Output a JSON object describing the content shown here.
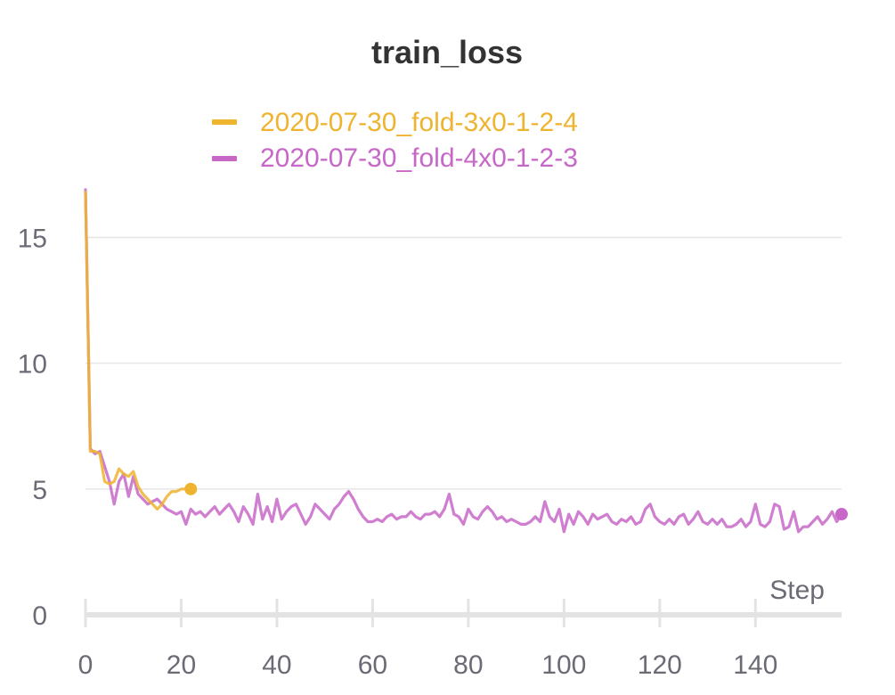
{
  "chart_data": {
    "type": "line",
    "title": "train_loss",
    "xlabel": "Step",
    "ylabel": "",
    "xlim": [
      0,
      158
    ],
    "ylim": [
      0,
      17
    ],
    "xticks": [
      0,
      20,
      40,
      60,
      80,
      100,
      120,
      140
    ],
    "yticks": [
      0,
      5,
      10,
      15
    ],
    "grid": true,
    "legend_position": "top-center",
    "series": [
      {
        "name": "2020-07-30_fold-3x0-1-2-4",
        "color": "#efb42f",
        "x": [
          0,
          1,
          2,
          3,
          4,
          5,
          6,
          7,
          8,
          9,
          10,
          11,
          12,
          13,
          14,
          15,
          16,
          17,
          18,
          19,
          20,
          21,
          22
        ],
        "y": [
          16.8,
          6.5,
          6.5,
          6.4,
          5.3,
          5.2,
          5.3,
          5.8,
          5.6,
          5.5,
          5.7,
          5.1,
          4.8,
          4.6,
          4.4,
          4.2,
          4.4,
          4.7,
          4.9,
          4.9,
          5.0,
          5.0,
          5.0
        ]
      },
      {
        "name": "2020-07-30_fold-4x0-1-2-3",
        "color": "#c767c8",
        "x": [
          0,
          1,
          2,
          3,
          4,
          5,
          6,
          7,
          8,
          9,
          10,
          11,
          12,
          13,
          14,
          15,
          16,
          17,
          18,
          19,
          20,
          21,
          22,
          23,
          24,
          25,
          26,
          27,
          28,
          29,
          30,
          31,
          32,
          33,
          34,
          35,
          36,
          37,
          38,
          39,
          40,
          41,
          42,
          43,
          44,
          45,
          46,
          47,
          48,
          49,
          50,
          51,
          52,
          53,
          54,
          55,
          56,
          57,
          58,
          59,
          60,
          61,
          62,
          63,
          64,
          65,
          66,
          67,
          68,
          69,
          70,
          71,
          72,
          73,
          74,
          75,
          76,
          77,
          78,
          79,
          80,
          81,
          82,
          83,
          84,
          85,
          86,
          87,
          88,
          89,
          90,
          91,
          92,
          93,
          94,
          95,
          96,
          97,
          98,
          99,
          100,
          101,
          102,
          103,
          104,
          105,
          106,
          107,
          108,
          109,
          110,
          111,
          112,
          113,
          114,
          115,
          116,
          117,
          118,
          119,
          120,
          121,
          122,
          123,
          124,
          125,
          126,
          127,
          128,
          129,
          130,
          131,
          132,
          133,
          134,
          135,
          136,
          137,
          138,
          139,
          140,
          141,
          142,
          143,
          144,
          145,
          146,
          147,
          148,
          149,
          150,
          151,
          152,
          153,
          154,
          155,
          156,
          157,
          158
        ],
        "y": [
          16.9,
          6.6,
          6.4,
          6.5,
          5.9,
          5.3,
          4.4,
          5.3,
          5.6,
          4.7,
          5.5,
          4.8,
          4.6,
          4.4,
          4.5,
          4.6,
          4.4,
          4.2,
          4.1,
          4.0,
          4.1,
          3.6,
          4.2,
          4.0,
          4.1,
          3.9,
          4.1,
          4.3,
          4.0,
          4.2,
          4.4,
          4.1,
          3.7,
          4.3,
          4.0,
          3.6,
          4.8,
          3.8,
          4.3,
          3.7,
          4.6,
          3.8,
          4.1,
          4.3,
          4.4,
          4.0,
          3.6,
          3.9,
          4.4,
          4.2,
          4.0,
          3.8,
          4.2,
          4.4,
          4.7,
          4.9,
          4.6,
          4.2,
          3.9,
          3.7,
          3.7,
          3.8,
          3.7,
          3.9,
          4.0,
          3.8,
          3.9,
          3.9,
          4.1,
          3.9,
          3.8,
          4.0,
          4.0,
          4.1,
          3.9,
          4.2,
          4.8,
          4.0,
          3.9,
          3.6,
          4.2,
          3.9,
          3.8,
          4.1,
          4.3,
          4.1,
          3.8,
          3.9,
          3.7,
          3.8,
          3.7,
          3.6,
          3.6,
          3.7,
          3.9,
          3.7,
          4.5,
          3.9,
          3.7,
          4.2,
          3.3,
          4.0,
          3.6,
          4.1,
          3.9,
          3.6,
          4.0,
          3.8,
          3.9,
          4.0,
          3.7,
          3.6,
          3.8,
          3.7,
          3.9,
          3.6,
          3.7,
          4.2,
          4.4,
          3.9,
          3.7,
          3.6,
          3.8,
          3.6,
          3.9,
          4.0,
          3.6,
          3.8,
          4.1,
          3.7,
          3.6,
          3.8,
          3.6,
          3.8,
          3.5,
          3.5,
          3.6,
          3.8,
          3.5,
          3.7,
          4.4,
          3.6,
          3.5,
          3.7,
          4.4,
          4.3,
          3.4,
          3.5,
          4.1,
          3.3,
          3.5,
          3.5,
          3.7,
          3.9,
          3.6,
          3.8,
          4.1,
          3.7,
          4.0
        ]
      }
    ]
  }
}
